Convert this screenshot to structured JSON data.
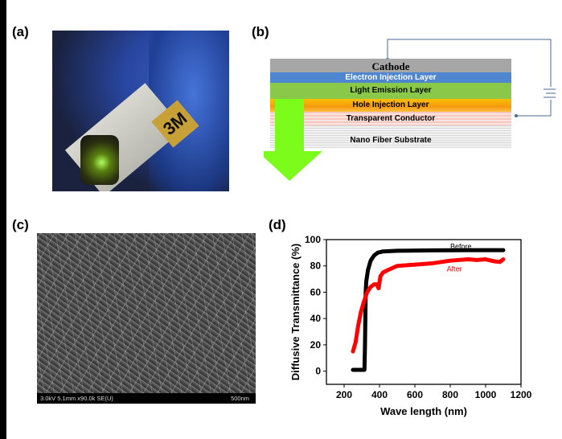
{
  "panels": {
    "a": {
      "label": "(a)",
      "logo_text": "3M"
    },
    "b": {
      "label": "(b)",
      "layers": [
        "Cathode",
        "Electron Injection Layer",
        "Light Emission Layer",
        "Hole Injection Layer",
        "Transparent Conductor",
        "Nano Fiber Substrate"
      ],
      "colors": {
        "cathode": "#a6a6a6",
        "electron": "#4f86d0",
        "emission": "#8ac84a",
        "hole": "#ffb300",
        "arrow": "#7cfc1a"
      }
    },
    "c": {
      "label": "(c)",
      "sem_info": "3.0kV 5.1mm x90.0k SE(U)",
      "scale_bar": "500nm"
    },
    "d": {
      "label": "(d)"
    }
  },
  "chart_data": {
    "type": "line",
    "title": "",
    "xlabel": "Wave length (nm)",
    "ylabel": "Diffusive Transmittance (%)",
    "xlim": [
      100,
      1200
    ],
    "ylim": [
      -10,
      100
    ],
    "xticks": [
      200,
      400,
      600,
      800,
      1000,
      1200
    ],
    "yticks": [
      0,
      20,
      40,
      60,
      80,
      100
    ],
    "grid": false,
    "series": [
      {
        "name": "Before",
        "color": "#000000",
        "x": [
          250,
          280,
          300,
          315,
          318,
          320,
          322,
          325,
          335,
          350,
          370,
          390,
          420,
          500,
          700,
          900,
          1100
        ],
        "y": [
          1,
          1,
          1,
          1,
          20,
          40,
          60,
          68,
          77,
          84,
          88,
          90,
          91,
          91.5,
          91.8,
          92,
          92
        ]
      },
      {
        "name": "After",
        "color": "#ff0000",
        "x": [
          250,
          265,
          280,
          295,
          310,
          330,
          350,
          370,
          385,
          395,
          405,
          420,
          450,
          500,
          600,
          700,
          800,
          900,
          950,
          1000,
          1050,
          1080,
          1100
        ],
        "y": [
          15,
          22,
          35,
          45,
          52,
          60,
          64,
          66,
          66,
          63,
          72,
          75,
          77,
          80,
          81,
          82,
          84,
          85,
          84.5,
          85,
          83.5,
          83,
          85
        ]
      }
    ]
  }
}
